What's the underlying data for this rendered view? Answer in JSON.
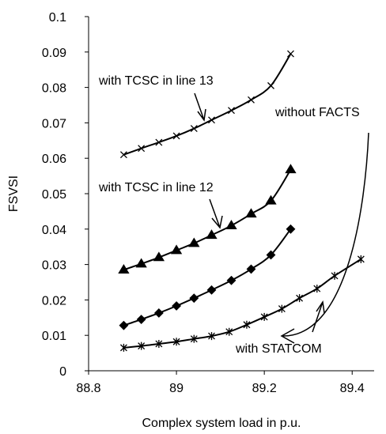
{
  "chart_data": {
    "type": "line",
    "xlabel": "Complex system load in p.u.",
    "ylabel": "FSVSI",
    "xlim": [
      88.8,
      89.45
    ],
    "xticks": [
      88.8,
      89,
      89.2,
      89.4
    ],
    "ylim": [
      0,
      0.1
    ],
    "yticks": [
      0,
      0.01,
      0.02,
      0.03,
      0.04,
      0.05,
      0.06,
      0.07,
      0.08,
      0.09,
      0.1
    ],
    "series": [
      {
        "name": "with TCSC in line 13",
        "color": "#000000",
        "marker": "x",
        "x": [
          88.88,
          88.92,
          88.96,
          89.0,
          89.04,
          89.08,
          89.125,
          89.17,
          89.215,
          89.26
        ],
        "values": [
          0.061,
          0.0628,
          0.0645,
          0.0663,
          0.0684,
          0.0708,
          0.0735,
          0.0765,
          0.0805,
          0.0895
        ]
      },
      {
        "name": "with TCSC in line 12",
        "color": "#000000",
        "marker": "triangle",
        "x": [
          88.88,
          88.92,
          88.96,
          89.0,
          89.04,
          89.08,
          89.125,
          89.17,
          89.215,
          89.26
        ],
        "values": [
          0.0285,
          0.0302,
          0.032,
          0.034,
          0.036,
          0.0383,
          0.041,
          0.0443,
          0.048,
          0.0568
        ]
      },
      {
        "name": "without FACTS",
        "color": "#000000",
        "marker": "diamond",
        "x": [
          88.88,
          88.92,
          88.96,
          89.0,
          89.04,
          89.08,
          89.125,
          89.17,
          89.215,
          89.26
        ],
        "values": [
          0.0128,
          0.0145,
          0.0163,
          0.0183,
          0.0205,
          0.0228,
          0.0255,
          0.0287,
          0.0327,
          0.04
        ]
      },
      {
        "name": "with STATCOM",
        "color": "#000000",
        "marker": "star",
        "x": [
          88.88,
          88.92,
          88.96,
          89.0,
          89.04,
          89.08,
          89.12,
          89.16,
          89.2,
          89.24,
          89.28,
          89.32,
          89.36,
          89.42
        ],
        "values": [
          0.0065,
          0.007,
          0.0076,
          0.0082,
          0.009,
          0.0098,
          0.011,
          0.013,
          0.0152,
          0.0175,
          0.0205,
          0.0232,
          0.0268,
          0.0315
        ]
      }
    ]
  }
}
